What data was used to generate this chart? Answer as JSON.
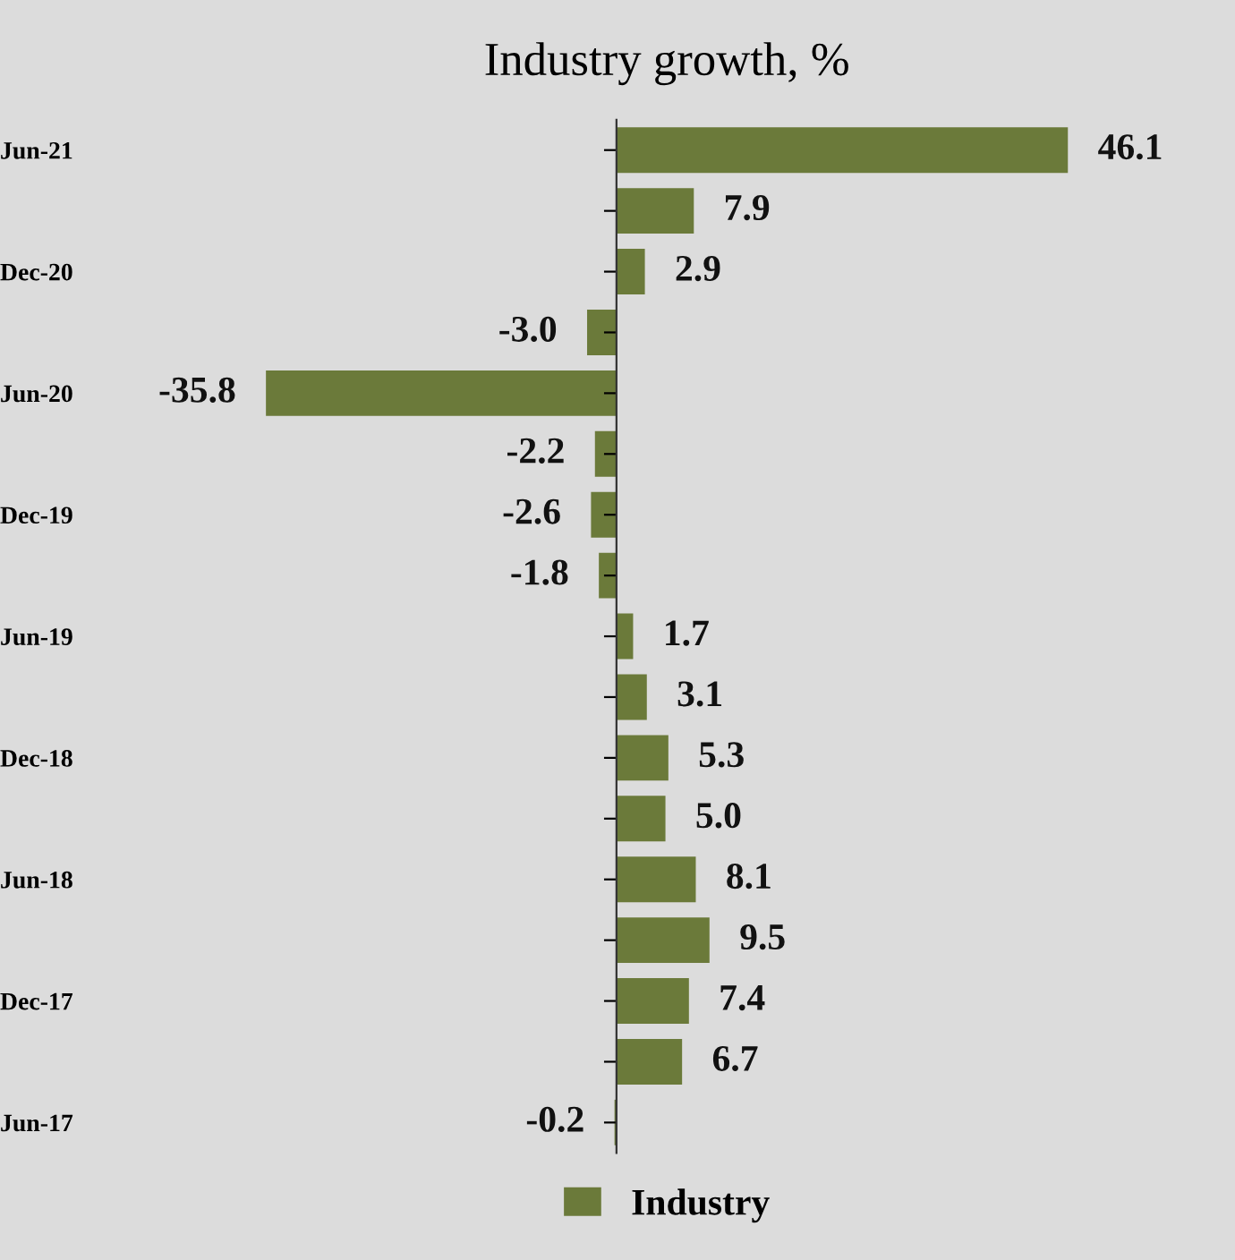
{
  "chart_data": {
    "type": "bar",
    "orientation": "horizontal",
    "title": "Industry growth, %",
    "categories": [
      "Jun-21",
      null,
      "Dec-20",
      null,
      "Jun-20",
      null,
      "Dec-19",
      null,
      "Jun-19",
      null,
      "Dec-18",
      null,
      "Jun-18",
      null,
      "Dec-17",
      null,
      "Jun-17"
    ],
    "series": [
      {
        "name": "Industry",
        "color": "#6b7a3a",
        "values": [
          46.1,
          7.9,
          2.9,
          -3.0,
          -35.8,
          -2.2,
          -2.6,
          -1.8,
          1.7,
          3.1,
          5.3,
          5.0,
          8.1,
          9.5,
          7.4,
          6.7,
          -0.2
        ],
        "value_labels": [
          "46.1",
          "7.9",
          "2.9",
          "-3.0",
          "-35.8",
          "-2.2",
          "-2.6",
          "-1.8",
          "1.7",
          "3.1",
          "5.3",
          "5.0",
          "8.1",
          "9.5",
          "7.4",
          "6.7",
          "-0.2"
        ]
      }
    ],
    "legend": "bottom",
    "grid": false
  }
}
